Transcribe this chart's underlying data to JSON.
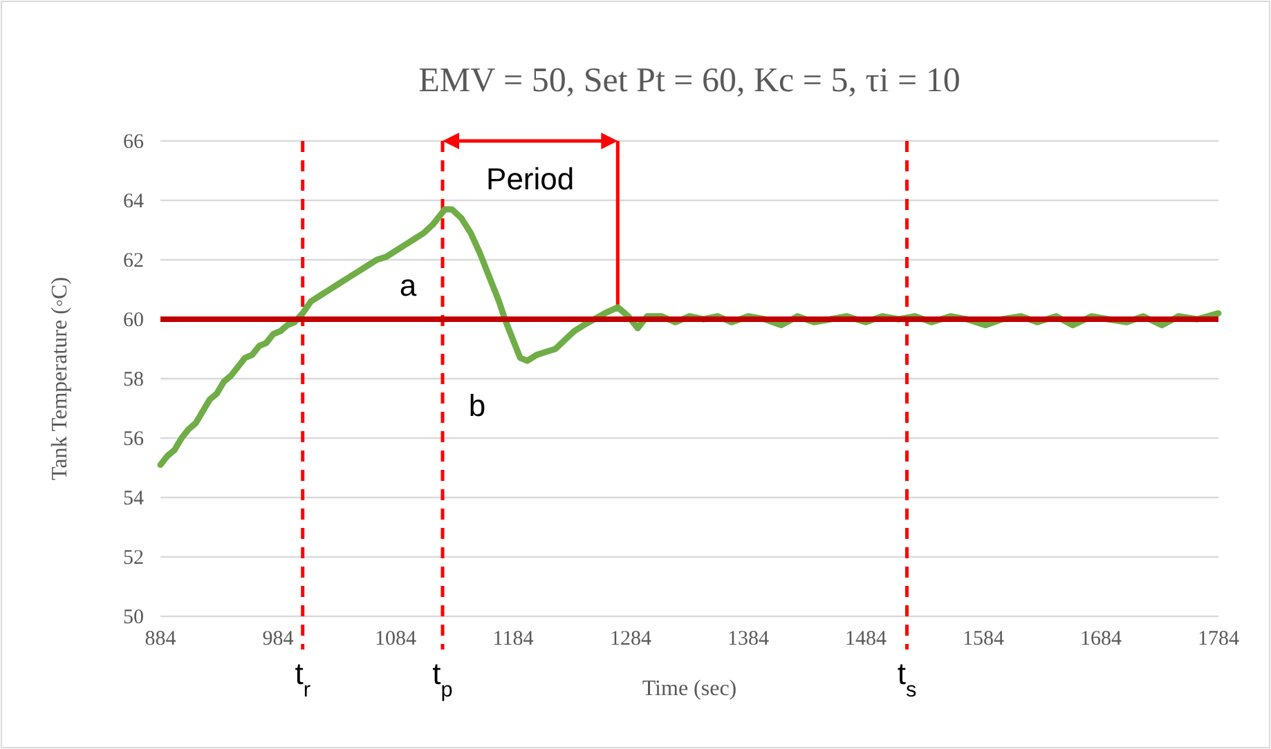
{
  "chart_data": {
    "type": "line",
    "title": "EMV = 50, Set Pt = 60, Kc = 5, τi = 10",
    "xlabel": "Time (sec)",
    "ylabel": "Tank Temperature (◦C)",
    "x": [
      884,
      890,
      896,
      902,
      908,
      914,
      920,
      926,
      932,
      938,
      944,
      950,
      956,
      962,
      968,
      974,
      980,
      986,
      992,
      998,
      1005,
      1012,
      1020,
      1028,
      1036,
      1044,
      1052,
      1060,
      1068,
      1076,
      1084,
      1092,
      1100,
      1108,
      1116,
      1122,
      1126,
      1132,
      1140,
      1148,
      1156,
      1164,
      1172,
      1177,
      1184,
      1190,
      1196,
      1204,
      1212,
      1220,
      1228,
      1236,
      1244,
      1253,
      1262,
      1273,
      1282,
      1290,
      1298,
      1310,
      1322,
      1334,
      1346,
      1358,
      1370,
      1384,
      1398,
      1412,
      1426,
      1440,
      1454,
      1468,
      1484,
      1498,
      1512,
      1526,
      1540,
      1556,
      1570,
      1586,
      1600,
      1616,
      1630,
      1646,
      1660,
      1676,
      1690,
      1706,
      1720,
      1736,
      1750,
      1766,
      1784
    ],
    "series": [
      {
        "color": "#70ad47",
        "values": [
          55.1,
          55.4,
          55.6,
          56.0,
          56.3,
          56.5,
          56.9,
          57.3,
          57.5,
          57.9,
          58.1,
          58.4,
          58.7,
          58.8,
          59.1,
          59.2,
          59.5,
          59.6,
          59.8,
          59.9,
          60.2,
          60.6,
          60.8,
          61.0,
          61.2,
          61.4,
          61.6,
          61.8,
          62.0,
          62.1,
          62.3,
          62.5,
          62.7,
          62.9,
          63.2,
          63.5,
          63.7,
          63.7,
          63.4,
          62.9,
          62.2,
          61.4,
          60.6,
          60.0,
          59.3,
          58.7,
          58.6,
          58.8,
          58.9,
          59.0,
          59.3,
          59.6,
          59.8,
          60.0,
          60.2,
          60.4,
          60.1,
          59.7,
          60.1,
          60.1,
          59.9,
          60.1,
          60.0,
          60.1,
          59.9,
          60.1,
          60.0,
          59.8,
          60.1,
          59.9,
          60.0,
          60.1,
          59.9,
          60.1,
          60.0,
          60.1,
          59.9,
          60.1,
          60.0,
          59.8,
          60.0,
          60.1,
          59.9,
          60.1,
          59.8,
          60.1,
          60.0,
          59.9,
          60.1,
          59.8,
          60.1,
          60.0,
          60.2
        ]
      }
    ],
    "xlim": [
      884,
      1784
    ],
    "xticks": [
      884,
      984,
      1084,
      1184,
      1284,
      1384,
      1484,
      1584,
      1684,
      1784
    ],
    "ylim": [
      50,
      66
    ],
    "yticks": [
      50,
      52,
      54,
      56,
      58,
      60,
      62,
      64,
      66
    ],
    "grid": "y",
    "marker": "none",
    "line_style": "solid",
    "ref_lines": [
      {
        "axis": "y",
        "value": 60,
        "color": "#c00000",
        "line_style": "solid"
      },
      {
        "axis": "x",
        "value": 1005,
        "label": "t$_{r}$",
        "color": "#ff0000",
        "line_style": "dashed"
      },
      {
        "axis": "x",
        "value": 1124,
        "label": "t$_{p}$",
        "color": "#ff0000",
        "line_style": "dashed"
      },
      {
        "axis": "x",
        "value": 1273,
        "color": "#ff0000",
        "line_style": "solid"
      },
      {
        "axis": "x",
        "value": 1519,
        "label": "t$_{s}$",
        "color": "#ff0000",
        "line_style": "dashed"
      }
    ],
    "annotations": [
      "Period",
      "a",
      "b"
    ]
  }
}
